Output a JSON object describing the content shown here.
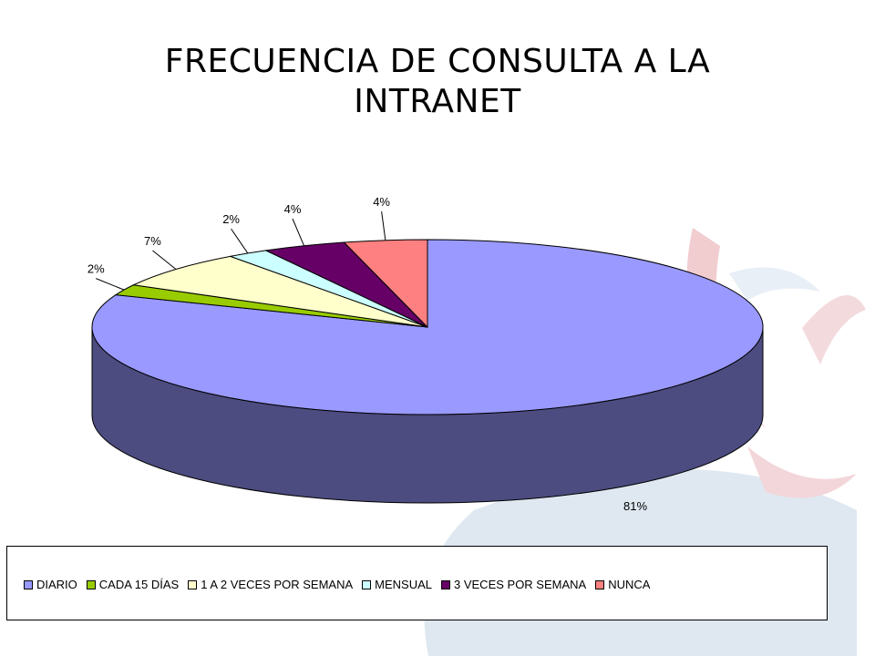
{
  "title": {
    "line1": "FRECUENCIA DE CONSULTA A LA",
    "line2": "INTRANET"
  },
  "chart_data": {
    "type": "pie",
    "style": "3d",
    "title": "FRECUENCIA DE CONSULTA A LA INTRANET",
    "categories": [
      "DIARIO",
      "CADA 15 DÍAS",
      "1 A 2 VECES POR SEMANA",
      "MENSUAL",
      "3 VECES POR SEMANA",
      "NUNCA"
    ],
    "values": [
      81,
      2,
      7,
      2,
      4,
      4
    ],
    "labels": [
      "81%",
      "2%",
      "7%",
      "2%",
      "4%",
      "4%"
    ],
    "colors": [
      "#9999ff",
      "#99cc00",
      "#ffffcc",
      "#ccffff",
      "#660066",
      "#ff8080"
    ],
    "side_colors": [
      "#4c4c80",
      "#4c6600",
      "#808066",
      "#668080",
      "#330033",
      "#804040"
    ],
    "legend_position": "bottom"
  }
}
